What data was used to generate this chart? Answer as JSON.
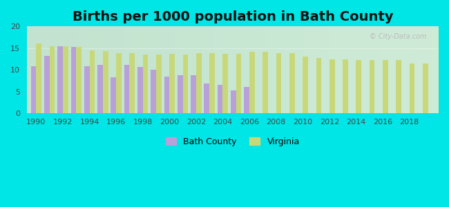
{
  "title": "Births per 1000 population in Bath County",
  "background_color": "#00e5e5",
  "bath_color": "#b8a0d8",
  "virginia_color": "#c8d878",
  "ylim": [
    0,
    20
  ],
  "yticks": [
    0,
    5,
    10,
    15,
    20
  ],
  "title_fontsize": 14,
  "bar_width": 0.4,
  "bath_data": [
    [
      1990,
      10.8
    ],
    [
      1991,
      13.2
    ],
    [
      1992,
      15.5
    ],
    [
      1993,
      15.3
    ],
    [
      1994,
      10.9
    ],
    [
      1995,
      11.2
    ],
    [
      1996,
      8.2
    ],
    [
      1997,
      11.2
    ],
    [
      1998,
      10.6
    ],
    [
      1999,
      10.0
    ],
    [
      2000,
      8.5
    ],
    [
      2001,
      8.8
    ],
    [
      2002,
      8.8
    ],
    [
      2003,
      6.9
    ],
    [
      2004,
      6.5
    ],
    [
      2005,
      5.2
    ],
    [
      2006,
      6.1
    ]
  ],
  "va_data": [
    [
      1990,
      16.0
    ],
    [
      1991,
      15.4
    ],
    [
      1992,
      15.4
    ],
    [
      1993,
      15.3
    ],
    [
      1994,
      14.5
    ],
    [
      1995,
      14.4
    ],
    [
      1996,
      13.8
    ],
    [
      1997,
      13.8
    ],
    [
      1998,
      13.5
    ],
    [
      1999,
      13.5
    ],
    [
      2000,
      13.7
    ],
    [
      2001,
      13.5
    ],
    [
      2002,
      13.8
    ],
    [
      2003,
      13.8
    ],
    [
      2004,
      13.7
    ],
    [
      2005,
      13.7
    ],
    [
      2006,
      14.1
    ],
    [
      2007,
      14.1
    ],
    [
      2008,
      13.8
    ],
    [
      2009,
      13.8
    ],
    [
      2010,
      13.0
    ],
    [
      2011,
      12.7
    ],
    [
      2012,
      12.4
    ],
    [
      2013,
      12.4
    ],
    [
      2014,
      12.3
    ],
    [
      2015,
      12.3
    ],
    [
      2016,
      12.2
    ],
    [
      2017,
      12.2
    ],
    [
      2018,
      11.5
    ],
    [
      2019,
      11.5
    ]
  ],
  "xlim_left": 1989.3,
  "xlim_right": 2020.2,
  "xticks": [
    1990,
    1992,
    1994,
    1996,
    1998,
    2000,
    2002,
    2004,
    2006,
    2008,
    2010,
    2012,
    2014,
    2016,
    2018
  ],
  "watermark": "City-Data.com"
}
